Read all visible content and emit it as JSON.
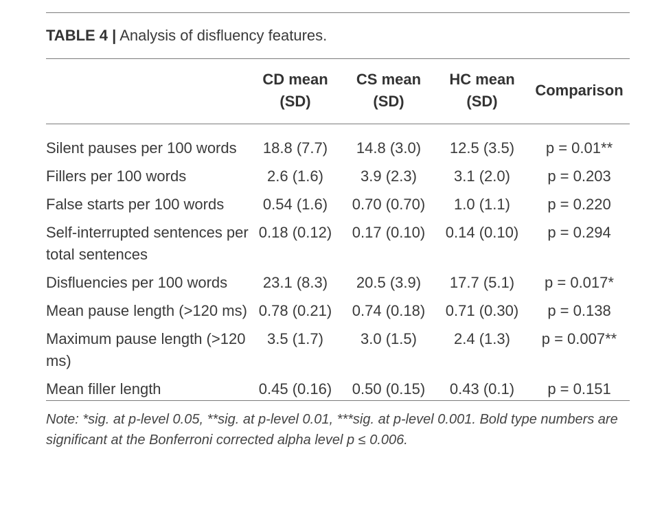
{
  "table": {
    "label": "TABLE 4 |",
    "caption": "Analysis of disfluency features.",
    "columns": [
      "",
      "CD mean (SD)",
      "CS mean (SD)",
      "HC mean (SD)",
      "Comparison"
    ],
    "rows": [
      [
        "Silent pauses per 100 words",
        "18.8 (7.7)",
        "14.8 (3.0)",
        "12.5 (3.5)",
        "p = 0.01**"
      ],
      [
        "Fillers per 100 words",
        "2.6 (1.6)",
        "3.9 (2.3)",
        "3.1 (2.0)",
        "p = 0.203"
      ],
      [
        "False starts per 100 words",
        "0.54 (1.6)",
        "0.70 (0.70)",
        "1.0 (1.1)",
        "p = 0.220"
      ],
      [
        "Self-interrupted sentences per total sentences",
        "0.18 (0.12)",
        "0.17 (0.10)",
        "0.14 (0.10)",
        "p = 0.294"
      ],
      [
        "Disfluencies per 100 words",
        "23.1 (8.3)",
        "20.5 (3.9)",
        "17.7 (5.1)",
        "p = 0.017*"
      ],
      [
        "Mean pause length (>120 ms)",
        "0.78 (0.21)",
        "0.74 (0.18)",
        "0.71 (0.30)",
        "p = 0.138"
      ],
      [
        "Maximum pause length (>120 ms)",
        "3.5 (1.7)",
        "3.0 (1.5)",
        "2.4 (1.3)",
        "p = 0.007**"
      ],
      [
        "Mean filler length",
        "0.45 (0.16)",
        "0.50 (0.15)",
        "0.43 (0.1)",
        "p = 0.151"
      ]
    ],
    "note": "Note: *sig. at p-level 0.05, **sig. at p-level 0.01, ***sig. at p-level 0.001. Bold type numbers are significant at the Bonferroni corrected alpha level p ≤ 0.006."
  }
}
